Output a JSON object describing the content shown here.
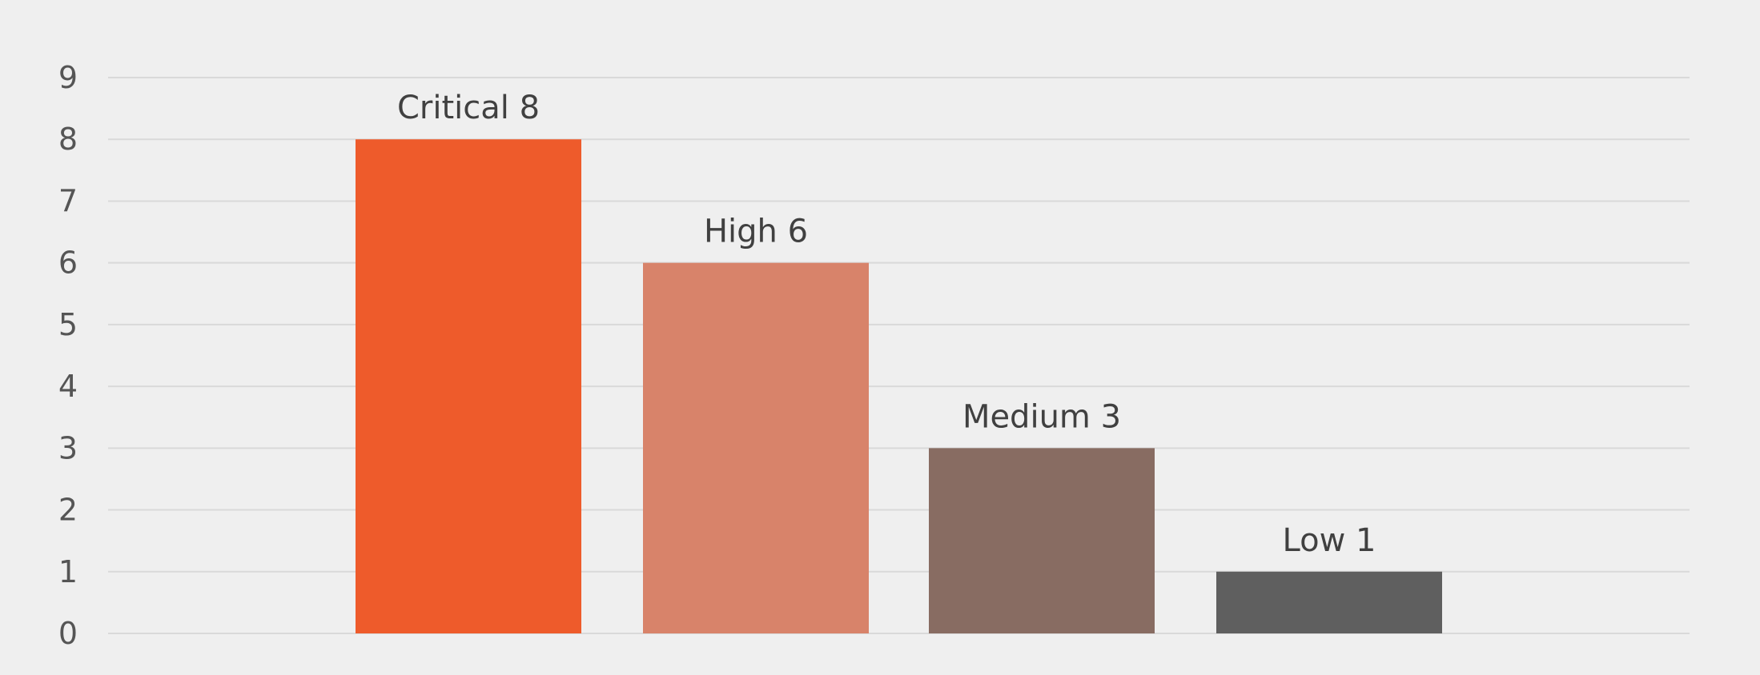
{
  "chart_data": {
    "type": "bar",
    "categories": [
      "Critical",
      "High",
      "Medium",
      "Low"
    ],
    "values": [
      8,
      6,
      3,
      1
    ],
    "data_labels": [
      "Critical 8",
      "High 6",
      "Medium 3",
      "Low 1"
    ],
    "title": "",
    "xlabel": "",
    "ylabel": "",
    "ylim": [
      0,
      9
    ],
    "yticks": [
      "0",
      "1",
      "2",
      "3",
      "4",
      "5",
      "6",
      "7",
      "8",
      "9"
    ],
    "grid": true,
    "legend": "none",
    "colors": [
      "#ee5b2b",
      "#d8836a",
      "#886c62",
      "#5f5f5f"
    ],
    "background": "#efefef"
  }
}
